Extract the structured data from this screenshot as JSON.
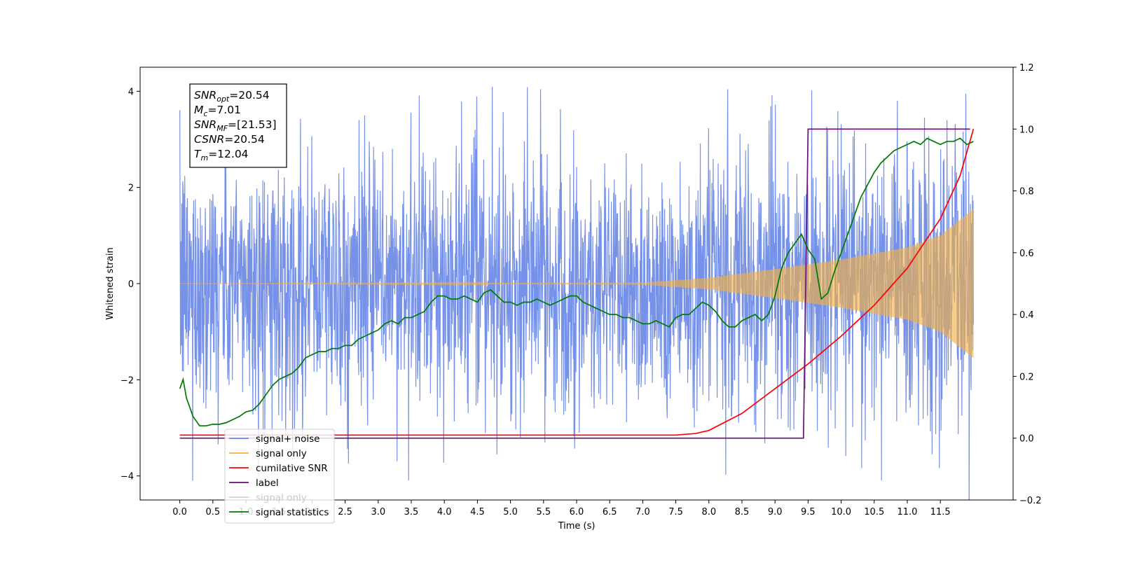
{
  "chart_data": {
    "type": "line",
    "title": "",
    "xlabel": "Time (s)",
    "ylabel": "Whitened strain",
    "y2label": "",
    "xlim": [
      -0.6,
      12.6
    ],
    "ylim": [
      -4.5,
      4.5
    ],
    "y2lim": [
      -0.2,
      1.2
    ],
    "x_ticks": [
      0.0,
      0.5,
      1.0,
      1.5,
      2.0,
      2.5,
      3.0,
      3.5,
      4.0,
      4.5,
      5.0,
      5.5,
      6.0,
      6.5,
      7.0,
      7.5,
      8.0,
      8.5,
      9.0,
      9.5,
      10.0,
      10.5,
      11.0,
      11.5
    ],
    "x_tick_labels": [
      "0.0",
      "0.5",
      "1.0",
      "1.5",
      "2.0",
      "2.5",
      "3.0",
      "3.5",
      "4.0",
      "4.5",
      "5.0",
      "5.5",
      "6.0",
      "6.5",
      "7.0",
      "7.5",
      "8.0",
      "8.5",
      "9.0",
      "9.5",
      "10.0",
      "10.5",
      "11.0",
      "11.5"
    ],
    "y_ticks": [
      -4,
      -2,
      0,
      2,
      4
    ],
    "y_tick_labels": [
      "−4",
      "−2",
      "0",
      "2",
      "4"
    ],
    "y2_ticks": [
      -0.2,
      0.0,
      0.2,
      0.4,
      0.6,
      0.8,
      1.0,
      1.2
    ],
    "y2_tick_labels": [
      "−0.2",
      "0.0",
      "0.2",
      "0.4",
      "0.6",
      "0.8",
      "1.0",
      "1.2"
    ],
    "grid": false,
    "legend_position": "bottom-left",
    "series": [
      {
        "name": "signal+ noise",
        "axis": "left",
        "color": "#6a88e6",
        "kind": "noise-band",
        "x_range": [
          0.0,
          12.0
        ],
        "base_amplitude": 1.3,
        "peak_max": 4.1,
        "peak_min": -4.1
      },
      {
        "name": "signal only",
        "axis": "left",
        "color": "#f5b041",
        "kind": "chirp-envelope",
        "envelope_x": [
          0.0,
          7.0,
          8.0,
          9.0,
          10.0,
          11.0,
          11.5,
          12.0
        ],
        "envelope_amplitude": [
          0.0,
          0.02,
          0.12,
          0.3,
          0.5,
          0.75,
          1.0,
          1.55
        ]
      },
      {
        "name": "cumilative SNR",
        "axis": "right",
        "color": "#ff0000",
        "x": [
          0.0,
          7.5,
          7.8,
          8.0,
          8.5,
          9.0,
          9.5,
          10.0,
          10.5,
          11.0,
          11.5,
          11.8,
          12.0
        ],
        "y": [
          0.01,
          0.01,
          0.015,
          0.025,
          0.08,
          0.16,
          0.24,
          0.33,
          0.43,
          0.55,
          0.71,
          0.85,
          1.0
        ]
      },
      {
        "name": "label",
        "axis": "right",
        "color": "#6a0f7a",
        "x": [
          0.0,
          9.43,
          9.5,
          11.95
        ],
        "y": [
          0.0,
          0.0,
          1.0,
          1.0
        ]
      },
      {
        "name": "signal only",
        "axis": "right",
        "color": "#aaaaaa",
        "hidden_in_plot": true
      },
      {
        "name": "signal statistics",
        "axis": "right",
        "color": "#007a00",
        "x": [
          0.0,
          0.05,
          0.1,
          0.2,
          0.3,
          0.4,
          0.5,
          0.6,
          0.7,
          0.8,
          0.9,
          1.0,
          1.1,
          1.2,
          1.3,
          1.4,
          1.5,
          1.6,
          1.7,
          1.8,
          1.9,
          2.0,
          2.1,
          2.2,
          2.3,
          2.4,
          2.5,
          2.6,
          2.7,
          2.8,
          2.9,
          3.0,
          3.1,
          3.2,
          3.3,
          3.4,
          3.5,
          3.6,
          3.7,
          3.8,
          3.9,
          4.0,
          4.1,
          4.2,
          4.3,
          4.4,
          4.5,
          4.6,
          4.7,
          4.8,
          4.9,
          5.0,
          5.1,
          5.2,
          5.3,
          5.4,
          5.5,
          5.6,
          5.7,
          5.8,
          5.9,
          6.0,
          6.1,
          6.2,
          6.3,
          6.4,
          6.5,
          6.6,
          6.7,
          6.8,
          6.9,
          7.0,
          7.1,
          7.2,
          7.3,
          7.4,
          7.5,
          7.6,
          7.7,
          7.8,
          7.9,
          8.0,
          8.1,
          8.2,
          8.3,
          8.4,
          8.5,
          8.6,
          8.7,
          8.8,
          8.9,
          9.0,
          9.1,
          9.2,
          9.3,
          9.4,
          9.5,
          9.6,
          9.7,
          9.8,
          9.9,
          10.0,
          10.1,
          10.2,
          10.3,
          10.4,
          10.5,
          10.6,
          10.7,
          10.8,
          10.9,
          11.0,
          11.1,
          11.2,
          11.3,
          11.4,
          11.5,
          11.6,
          11.7,
          11.8,
          11.9,
          12.0
        ],
        "y": [
          0.16,
          0.19,
          0.13,
          0.07,
          0.04,
          0.04,
          0.045,
          0.045,
          0.05,
          0.06,
          0.07,
          0.085,
          0.09,
          0.11,
          0.14,
          0.17,
          0.19,
          0.2,
          0.21,
          0.23,
          0.26,
          0.27,
          0.28,
          0.28,
          0.29,
          0.29,
          0.3,
          0.3,
          0.32,
          0.33,
          0.34,
          0.35,
          0.37,
          0.38,
          0.37,
          0.39,
          0.39,
          0.4,
          0.41,
          0.44,
          0.46,
          0.46,
          0.45,
          0.45,
          0.46,
          0.45,
          0.44,
          0.47,
          0.48,
          0.46,
          0.44,
          0.44,
          0.43,
          0.44,
          0.44,
          0.45,
          0.44,
          0.43,
          0.44,
          0.45,
          0.46,
          0.46,
          0.44,
          0.43,
          0.42,
          0.41,
          0.4,
          0.4,
          0.39,
          0.39,
          0.38,
          0.37,
          0.37,
          0.38,
          0.37,
          0.36,
          0.39,
          0.4,
          0.4,
          0.42,
          0.44,
          0.43,
          0.41,
          0.38,
          0.36,
          0.36,
          0.38,
          0.39,
          0.4,
          0.38,
          0.4,
          0.46,
          0.55,
          0.6,
          0.63,
          0.66,
          0.61,
          0.58,
          0.45,
          0.47,
          0.54,
          0.6,
          0.66,
          0.72,
          0.78,
          0.82,
          0.86,
          0.89,
          0.91,
          0.93,
          0.94,
          0.95,
          0.96,
          0.95,
          0.97,
          0.96,
          0.95,
          0.96,
          0.96,
          0.97,
          0.95,
          0.96
        ]
      }
    ],
    "info_box": [
      {
        "symbol": "SNR",
        "sub": "opt",
        "value": "=20.54"
      },
      {
        "symbol": "M",
        "sub": "c",
        "value": "=7.01"
      },
      {
        "symbol": "SNR",
        "sub": "MF",
        "value": "=[21.53]"
      },
      {
        "symbol": "CSNR",
        "sub": "",
        "value": "=20.54"
      },
      {
        "symbol": "T",
        "sub": "m",
        "value": "=12.04"
      }
    ],
    "legend": [
      {
        "label": "signal+ noise",
        "color": "#6a88e6",
        "dimmed": false
      },
      {
        "label": "signal only",
        "color": "#f5b041",
        "dimmed": false
      },
      {
        "label": "cumilative SNR",
        "color": "#ff0000",
        "dimmed": false
      },
      {
        "label": "label",
        "color": "#6a0f7a",
        "dimmed": false
      },
      {
        "label": "signal only",
        "color": "#aaaaaa",
        "dimmed": true
      },
      {
        "label": "signal statistics",
        "color": "#007a00",
        "dimmed": false
      }
    ]
  }
}
